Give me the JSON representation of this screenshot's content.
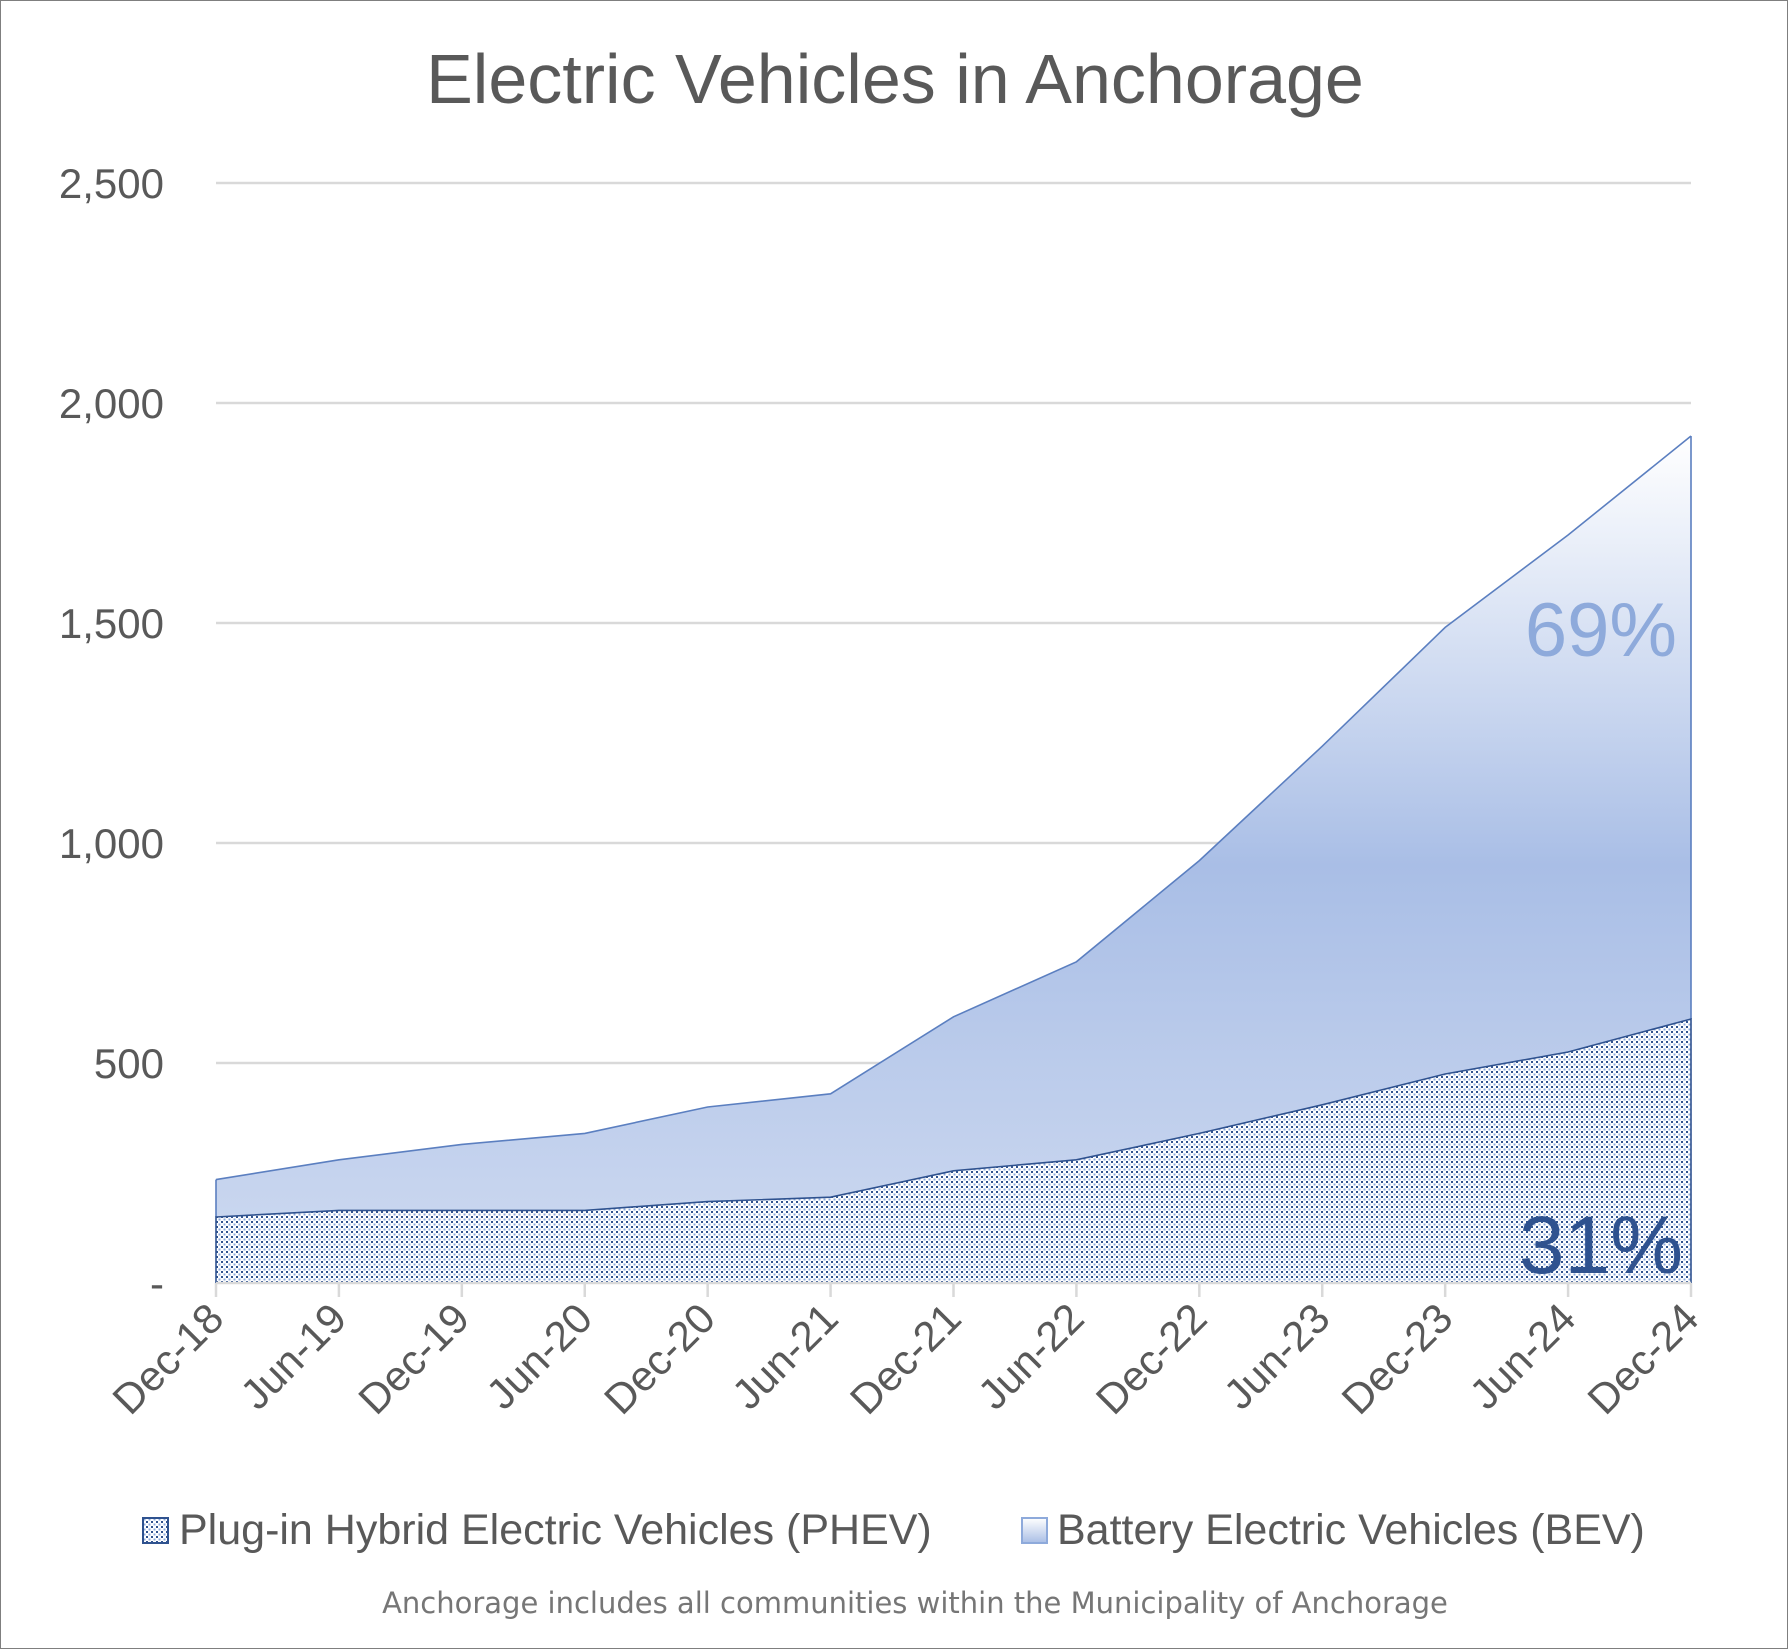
{
  "chart_data": {
    "type": "area",
    "stacked": true,
    "title": "Electric Vehicles in Anchorage",
    "xlabel": "",
    "ylabel": "",
    "categories": [
      "Dec-18",
      "Jun-19",
      "Dec-19",
      "Jun-20",
      "Dec-20",
      "Jun-21",
      "Dec-21",
      "Jun-22",
      "Dec-22",
      "Jun-23",
      "Dec-23",
      "Jun-24",
      "Dec-24"
    ],
    "series": [
      {
        "name": "Plug-in Hybrid Electric Vehicles (PHEV)",
        "values": [
          150,
          165,
          165,
          165,
          185,
          195,
          255,
          280,
          340,
          405,
          475,
          525,
          600
        ],
        "color": "#2f528f",
        "share_label": "31%"
      },
      {
        "name": "Battery Electric Vehicles (BEV)",
        "values": [
          85,
          115,
          150,
          175,
          215,
          235,
          350,
          450,
          620,
          815,
          1015,
          1175,
          1325
        ],
        "color": "#8eaadb",
        "share_label": "69%"
      }
    ],
    "ylim": [
      0,
      2500
    ],
    "yticks": [
      0,
      500,
      1000,
      1500,
      2000,
      2500
    ],
    "ytick_labels": [
      "-",
      "500",
      "1,000",
      "1,500",
      "2,000",
      "2,500"
    ],
    "grid": "horizontal",
    "legend_position": "bottom",
    "footnote": "Anchorage includes all communities within the Municipality of Anchorage"
  }
}
